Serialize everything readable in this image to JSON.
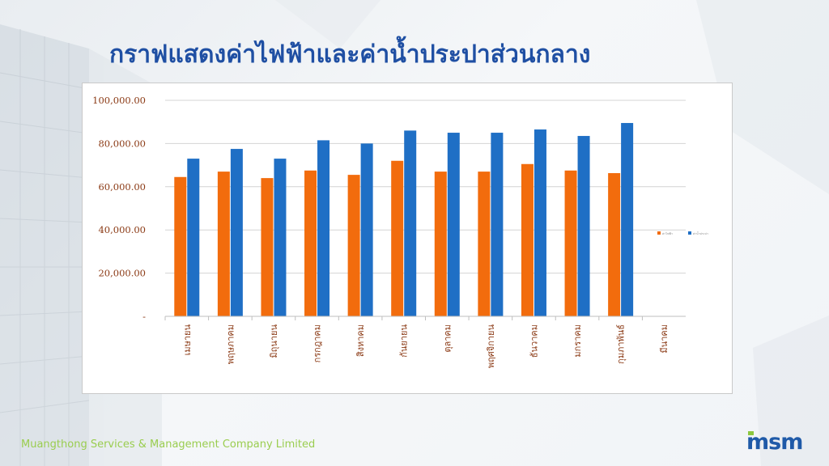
{
  "slide": {
    "title": "กราฟแสดงค่าไฟฟ้าและค่าน้ำประปาส่วนกลาง",
    "footer": "Muangthong Services & Management Company Limited",
    "logo": "msm"
  },
  "colors": {
    "series1": "#f26c0d",
    "series2": "#1f6fc5",
    "title": "#1f4fa3",
    "footer": "#9acd4f"
  },
  "chart_data": {
    "type": "bar",
    "title": "",
    "xlabel": "",
    "ylabel": "",
    "ylim": [
      0,
      100000
    ],
    "yticks": [
      0,
      20000,
      40000,
      60000,
      80000,
      100000
    ],
    "ytick_labels": [
      "-",
      "20,000.00",
      "40,000.00",
      "60,000.00",
      "80,000.00",
      "100,000.00"
    ],
    "grid": true,
    "legend": "right",
    "categories": [
      "เมษายน",
      "พฤษภาคม",
      "มิถุนายน",
      "กรกฎาคม",
      "สิงหาคม",
      "กันยายน",
      "ตุลาคม",
      "พฤศจิกายน",
      "ธันวาคม",
      "มกราคม",
      "กุมภาพันธ์",
      "มีนาคม"
    ],
    "series": [
      {
        "name": "ค่าไฟฟ้า",
        "color": "#f26c0d",
        "values": [
          64500,
          67000,
          64000,
          67500,
          65500,
          72000,
          67000,
          67000,
          70500,
          67500,
          66300,
          null
        ]
      },
      {
        "name": "ค่าน้ำประปา",
        "color": "#1f6fc5",
        "values": [
          73000,
          77500,
          73000,
          81500,
          80000,
          86000,
          85000,
          85000,
          86500,
          83500,
          89500,
          null
        ]
      }
    ]
  }
}
